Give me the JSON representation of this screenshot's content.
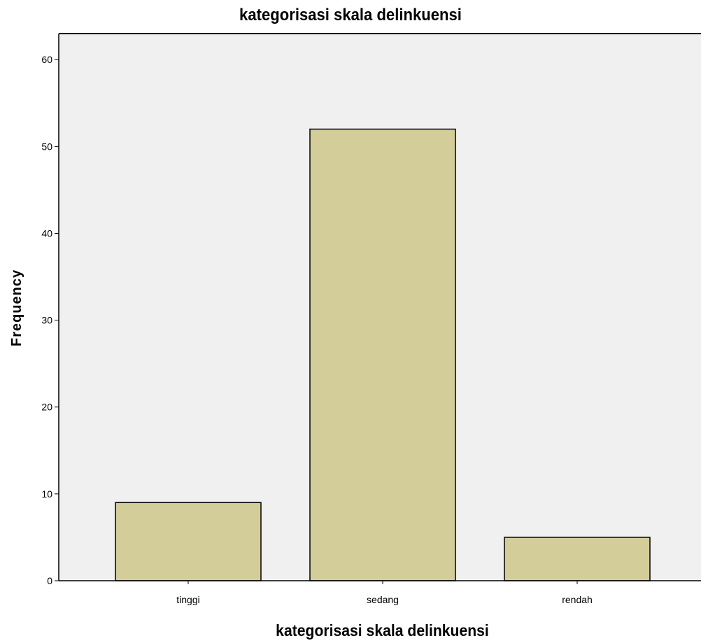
{
  "chart_data": {
    "type": "bar",
    "title": "kategorisasi skala delinkuensi",
    "xlabel": "kategorisasi skala delinkuensi",
    "ylabel": "Frequency",
    "categories": [
      "tinggi",
      "sedang",
      "rendah"
    ],
    "values": [
      9,
      52,
      5
    ],
    "ylim": [
      0,
      63
    ],
    "yticks": [
      "0",
      "10",
      "20",
      "30",
      "40",
      "50",
      "60"
    ],
    "grid": false,
    "colors": {
      "bar_fill": "#d3ce99",
      "bar_stroke": "#000000",
      "plot_bg": "#f0f0f0"
    }
  }
}
